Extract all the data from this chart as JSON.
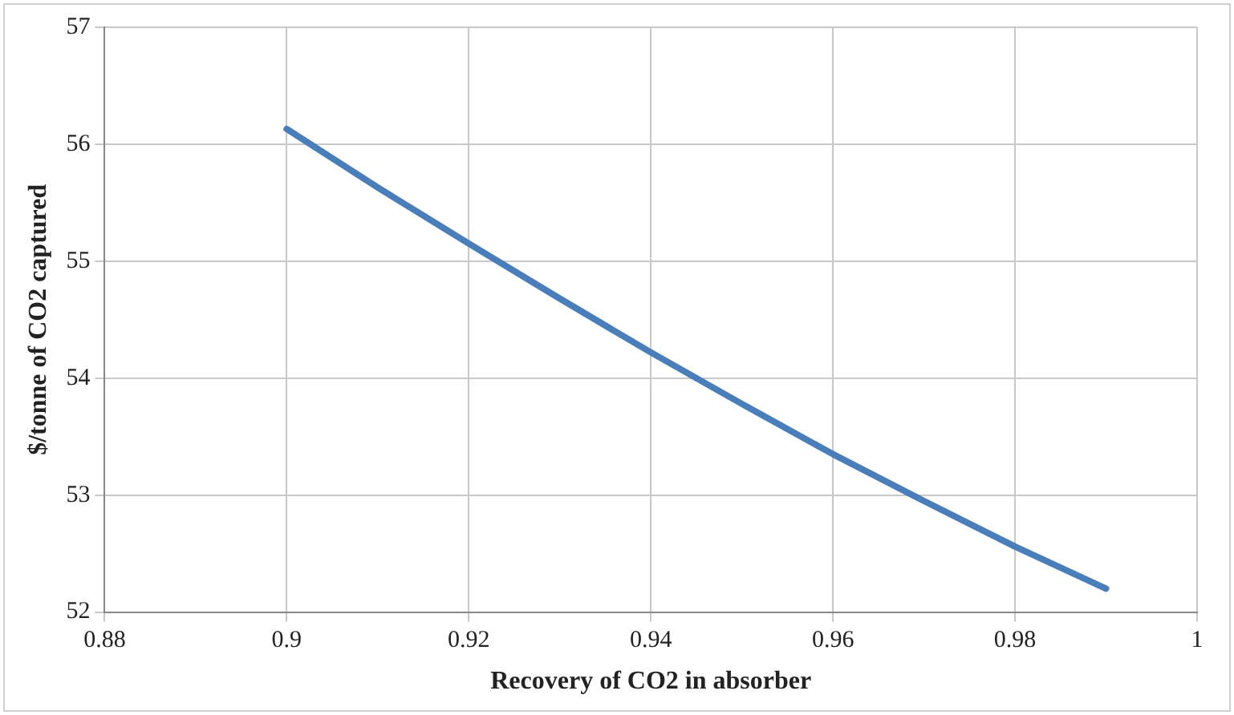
{
  "chart_data": {
    "type": "line",
    "xlabel": "Recovery of CO2 in absorber",
    "ylabel": "$/tonne of CO2 captured",
    "x": [
      0.9,
      0.91,
      0.92,
      0.93,
      0.94,
      0.95,
      0.96,
      0.97,
      0.98,
      0.99
    ],
    "series": [
      {
        "color": "#4a7ebb",
        "values": [
          56.13,
          55.63,
          55.15,
          54.68,
          54.22,
          53.78,
          53.35,
          52.95,
          52.56,
          52.2
        ]
      }
    ],
    "xlim": [
      0.88,
      1
    ],
    "xticks": [
      0.88,
      0.9,
      0.92,
      0.94,
      0.96,
      0.98,
      1
    ],
    "ylim": [
      52,
      57
    ],
    "yticks": [
      52,
      53,
      54,
      55,
      56,
      57
    ],
    "grid": true,
    "legend": false,
    "marker": "none",
    "line_style": "solid"
  }
}
